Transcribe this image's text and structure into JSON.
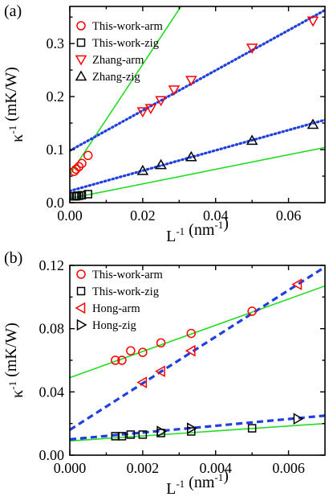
{
  "chart_data": [
    {
      "type": "scatter",
      "panel_label": "(a)",
      "xlabel_base": "L",
      "xlabel_exp": "-1",
      "xlabel_unit": " (nm",
      "xlabel_unit_exp": "-1",
      "xlabel_close": ")",
      "ylabel_base": "κ",
      "ylabel_exp": "-1",
      "ylabel_unit": " (mK/W)",
      "xlim": [
        0,
        0.07
      ],
      "ylim": [
        0,
        0.37
      ],
      "xticks": [
        "0.00",
        "0.02",
        "0.04",
        "0.06"
      ],
      "xtick_values": [
        0,
        0.02,
        0.04,
        0.06
      ],
      "yticks": [
        "0.0",
        "0.1",
        "0.2",
        "0.3"
      ],
      "ytick_values": [
        0,
        0.1,
        0.2,
        0.3
      ],
      "legend_position": "top-left",
      "series": [
        {
          "name": "This-work-arm",
          "marker": "circle",
          "color": "#ff0000",
          "x": [
            0.0012,
            0.0017,
            0.0025,
            0.0033,
            0.005
          ],
          "y": [
            0.059,
            0.063,
            0.068,
            0.074,
            0.089
          ]
        },
        {
          "name": "This-work-zig",
          "marker": "square",
          "color": "#000000",
          "x": [
            0.0012,
            0.0017,
            0.002,
            0.0025,
            0.0033,
            0.005
          ],
          "y": [
            0.012,
            0.012,
            0.013,
            0.013,
            0.014,
            0.016
          ]
        },
        {
          "name": "Zhang-arm",
          "marker": "triangle-down",
          "color": "#ff0000",
          "x": [
            0.02,
            0.0222,
            0.025,
            0.0286,
            0.0333,
            0.05,
            0.0667
          ],
          "y": [
            0.172,
            0.178,
            0.193,
            0.213,
            0.231,
            0.292,
            0.343
          ]
        },
        {
          "name": "Zhang-zig",
          "marker": "triangle-up",
          "color": "#000000",
          "x": [
            0.02,
            0.025,
            0.0333,
            0.05,
            0.0667
          ],
          "y": [
            0.06,
            0.071,
            0.086,
            0.117,
            0.147
          ]
        }
      ],
      "fit_lines": [
        {
          "style": "solid",
          "color": "#22dd22",
          "x": [
            0.0,
            0.0305
          ],
          "y": [
            0.053,
            0.37
          ]
        },
        {
          "style": "solid",
          "color": "#22dd22",
          "x": [
            0.0,
            0.07
          ],
          "y": [
            0.008,
            0.104
          ]
        },
        {
          "style": "dotted",
          "color": "#1f3fe0",
          "x": [
            0.0,
            0.07
          ],
          "y": [
            0.098,
            0.363
          ]
        },
        {
          "style": "dotted",
          "color": "#1f3fe0",
          "x": [
            0.0,
            0.07
          ],
          "y": [
            0.022,
            0.156
          ]
        }
      ]
    },
    {
      "type": "scatter",
      "panel_label": "(b)",
      "xlabel_base": "L",
      "xlabel_exp": "-1",
      "xlabel_unit": " (nm",
      "xlabel_unit_exp": "-1",
      "xlabel_close": ")",
      "ylabel_base": "κ",
      "ylabel_exp": "-1",
      "ylabel_unit": " (mK/W)",
      "xlim": [
        0,
        0.007
      ],
      "ylim": [
        0,
        0.12
      ],
      "xticks": [
        "0.000",
        "0.002",
        "0.004",
        "0.006"
      ],
      "xtick_values": [
        0,
        0.002,
        0.004,
        0.006
      ],
      "yticks": [
        "0.00",
        "0.04",
        "0.08",
        "0.12"
      ],
      "ytick_values": [
        0,
        0.04,
        0.08,
        0.12
      ],
      "legend_position": "top-left",
      "series": [
        {
          "name": "This-work-arm",
          "marker": "circle",
          "color": "#ff0000",
          "x": [
            0.00125,
            0.00143,
            0.00167,
            0.002,
            0.0025,
            0.00333,
            0.005
          ],
          "y": [
            0.06,
            0.06,
            0.066,
            0.065,
            0.071,
            0.077,
            0.091
          ]
        },
        {
          "name": "This-work-zig",
          "marker": "square",
          "color": "#000000",
          "x": [
            0.00125,
            0.00143,
            0.00167,
            0.002,
            0.0025,
            0.00333,
            0.005
          ],
          "y": [
            0.012,
            0.012,
            0.013,
            0.013,
            0.014,
            0.015,
            0.017
          ]
        },
        {
          "name": "Hong-arm",
          "marker": "triangle-left",
          "color": "#ff0000",
          "x": [
            0.002,
            0.0025,
            0.00333,
            0.00625
          ],
          "y": [
            0.046,
            0.053,
            0.066,
            0.108
          ]
        },
        {
          "name": "Hong-zig",
          "marker": "triangle-right",
          "color": "#000000",
          "x": [
            0.0025,
            0.00333,
            0.00625
          ],
          "y": [
            0.015,
            0.017,
            0.023
          ]
        }
      ],
      "fit_lines": [
        {
          "style": "solid",
          "color": "#22dd22",
          "x": [
            0.0,
            0.007
          ],
          "y": [
            0.049,
            0.107
          ]
        },
        {
          "style": "solid",
          "color": "#22dd22",
          "x": [
            0.0,
            0.007
          ],
          "y": [
            0.009,
            0.02
          ]
        },
        {
          "style": "dashed",
          "color": "#1f3fe0",
          "x": [
            0.0,
            0.007
          ],
          "y": [
            0.016,
            0.119
          ]
        },
        {
          "style": "dashed",
          "color": "#1f3fe0",
          "x": [
            0.0,
            0.007
          ],
          "y": [
            0.01,
            0.025
          ]
        }
      ]
    }
  ]
}
